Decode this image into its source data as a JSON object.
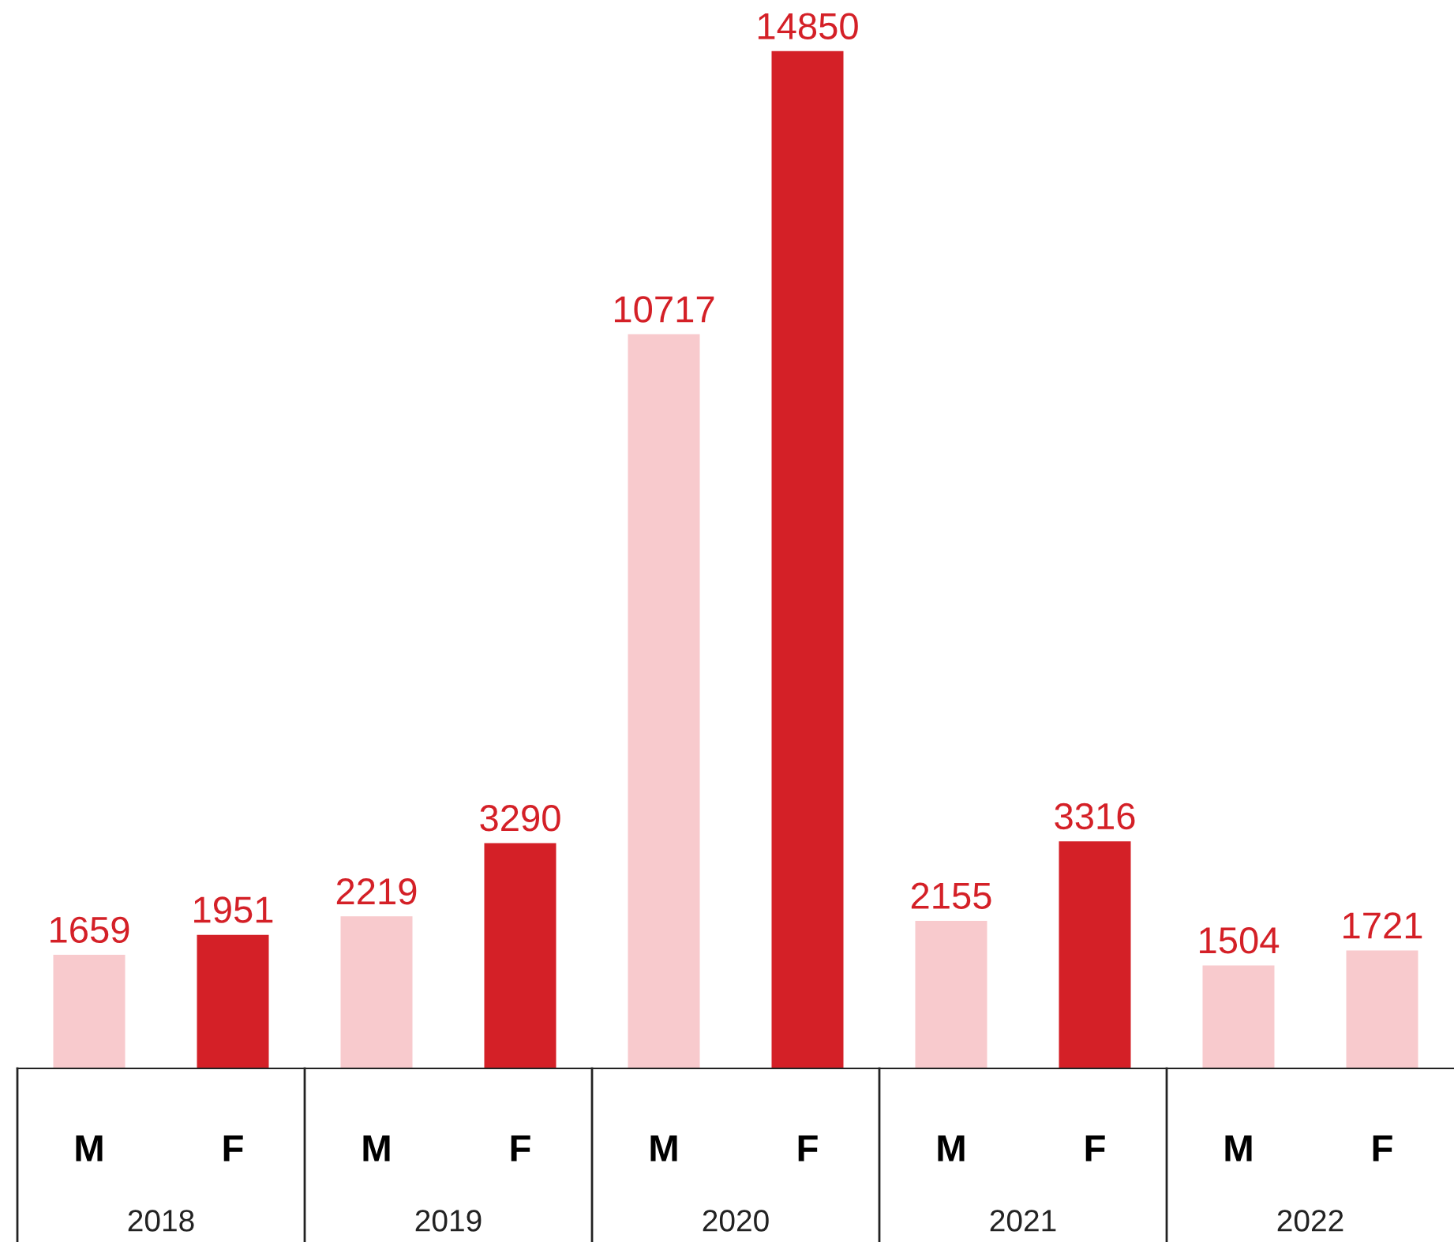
{
  "chart_data": {
    "type": "bar",
    "categories": [
      "M",
      "F",
      "M",
      "F",
      "M",
      "F",
      "M",
      "F",
      "M",
      "F"
    ],
    "values": [
      1659,
      1951,
      2219,
      3290,
      10717,
      14850,
      2155,
      3316,
      1504,
      1721
    ],
    "colors": [
      "#f8cacd",
      "#d42027",
      "#f8cacd",
      "#d42027",
      "#f8cacd",
      "#d42027",
      "#f8cacd",
      "#d42027",
      "#f8cacd",
      "#f8cacd"
    ],
    "data_labels": true,
    "annotations": [
      "2018",
      "2019",
      "2020",
      "2021",
      "2022"
    ],
    "grid": false,
    "legend": false
  }
}
